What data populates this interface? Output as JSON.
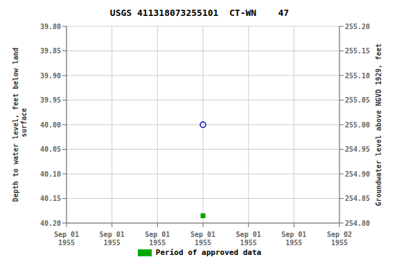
{
  "chart_data": {
    "type": "scatter",
    "title": "USGS 411318073255101  CT-WN    47",
    "ylabel": "Depth to water level, feet below land\n surface",
    "y2label": "Groundwater level above NGVD 1929, feet",
    "categories": [
      "Sep 01\n1955",
      "Sep 01\n1955",
      "Sep 01\n1955",
      "Sep 01\n1955",
      "Sep 01\n1955",
      "Sep 01\n1955",
      "Sep 02\n1955"
    ],
    "ylim": [
      40.2,
      39.8
    ],
    "yticks": [
      {
        "value": 39.8,
        "label": "39.80"
      },
      {
        "value": 39.85,
        "label": "39.85"
      },
      {
        "value": 39.9,
        "label": "39.90"
      },
      {
        "value": 39.95,
        "label": "39.95"
      },
      {
        "value": 40.0,
        "label": "40.00"
      },
      {
        "value": 40.05,
        "label": "40.05"
      },
      {
        "value": 40.1,
        "label": "40.10"
      },
      {
        "value": 40.15,
        "label": "40.15"
      },
      {
        "value": 40.2,
        "label": "40.20"
      }
    ],
    "y2lim": [
      254.8,
      255.2
    ],
    "y2ticks": [
      {
        "value": 255.2,
        "label": "255.20"
      },
      {
        "value": 255.15,
        "label": "255.15"
      },
      {
        "value": 255.1,
        "label": "255.10"
      },
      {
        "value": 255.05,
        "label": "255.05"
      },
      {
        "value": 255.0,
        "label": "255.00"
      },
      {
        "value": 254.95,
        "label": "254.95"
      },
      {
        "value": 254.9,
        "label": "254.90"
      },
      {
        "value": 254.85,
        "label": "254.85"
      },
      {
        "value": 254.8,
        "label": "254.80"
      }
    ],
    "grid": true,
    "legend": "bottom",
    "series": [
      {
        "color": "#0000cc",
        "marker": "open_circle",
        "values": [
          null,
          null,
          null,
          40.0,
          null,
          null,
          null
        ]
      },
      {
        "name": "Period of approved data",
        "color": "#00aa00",
        "marker": "square",
        "values": [
          null,
          null,
          null,
          40.185,
          null,
          null,
          null
        ]
      }
    ]
  }
}
